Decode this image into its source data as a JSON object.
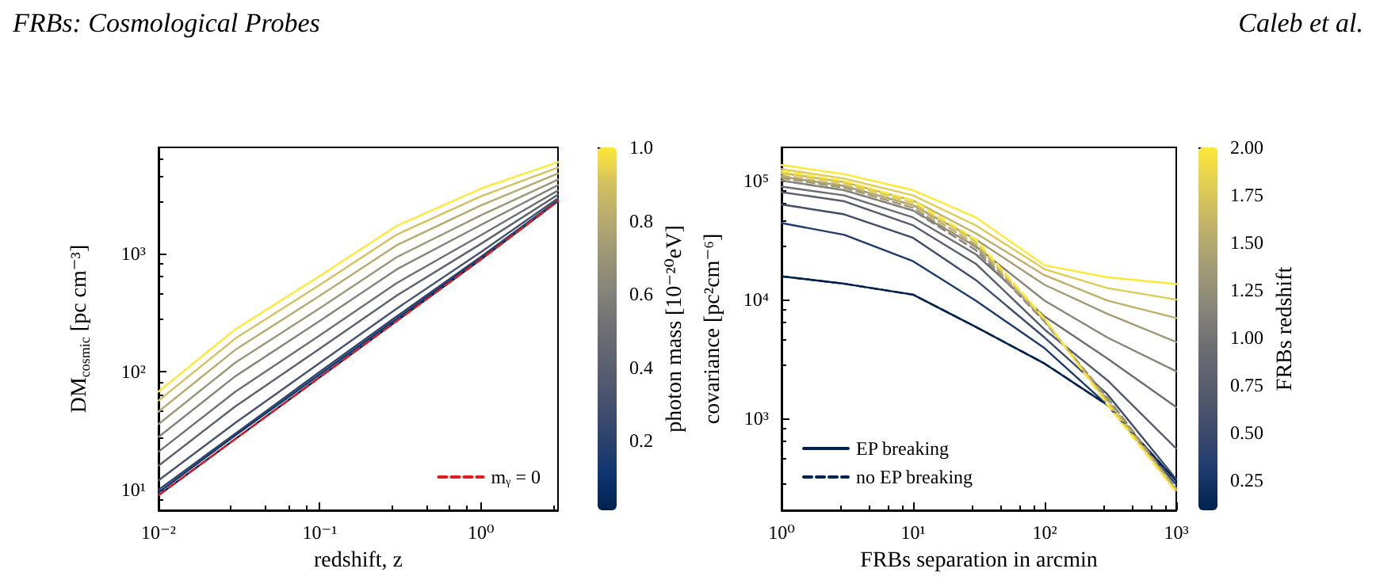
{
  "chart_data": [
    {
      "type": "line",
      "annotations": [
        "FRBs: Cosmological Probes"
      ],
      "xlabel": "redshift, z",
      "ylabel": "DM$_{cosmic}$ [pc cm⁻³]",
      "clabel": "photon mass [10⁻²⁰eV]",
      "clim": [
        0.01,
        1.0
      ],
      "cticks": [
        0.2,
        0.4,
        0.6,
        0.8,
        {
          "value": 1.0,
          "label": "1.0"
        }
      ],
      "log": "xy",
      "xlim": [
        0.01,
        3
      ],
      "ylim": [
        6.7,
        8000
      ],
      "xticks": [
        {
          "value": 0.01,
          "label": "10⁻²"
        },
        {
          "value": 0.1,
          "label": "10⁻¹"
        },
        {
          "value": 1,
          "label": "10⁰"
        }
      ],
      "yticks": [
        {
          "value": 10,
          "label": "10¹"
        },
        {
          "value": 100,
          "label": "10²"
        },
        {
          "value": 1000,
          "label": "10³"
        }
      ],
      "grid": false,
      "legend": "bottom right",
      "marker": "none",
      "x": [
        0.01,
        0.03,
        0.1,
        0.3,
        1,
        3
      ],
      "series": [
        {
          "color": "#00224e",
          "values": [
            9,
            27,
            90,
            270,
            900,
            2800
          ]
        },
        {
          "color": "#0f3570",
          "values": [
            9.5,
            29,
            95,
            282,
            923,
            2827
          ]
        },
        {
          "color": "#2d436b",
          "values": [
            10,
            30,
            100,
            295,
            946,
            2854
          ]
        },
        {
          "color": "#47526e",
          "values": [
            12,
            37,
            119,
            344,
            1037,
            2963
          ]
        },
        {
          "color": "#5c606f",
          "values": [
            16,
            51,
            157,
            444,
            1219,
            3181
          ]
        },
        {
          "color": "#6f6f74",
          "values": [
            21,
            68,
            204,
            566,
            1444,
            3450
          ]
        },
        {
          "color": "#838379",
          "values": [
            28,
            92,
            270,
            740,
            1763,
            3830
          ]
        },
        {
          "color": "#9b9677",
          "values": [
            36,
            120,
            346,
            939,
            2127,
            4266
          ]
        },
        {
          "color": "#b5aa6f",
          "values": [
            46,
            154,
            441,
            1185,
            2580,
            4806
          ]
        },
        {
          "color": "#d3c060",
          "values": [
            57,
            192,
            546,
            1458,
            3082,
            5405
          ]
        },
        {
          "color": "#fee838",
          "values": [
            68,
            230,
            650,
            1730,
            3580,
            6000
          ]
        },
        {
          "name": "mᵧ = 0",
          "color": "#e41a1c",
          "line_style": "dashed",
          "values": [
            9,
            27,
            90,
            270,
            900,
            2800
          ]
        }
      ]
    },
    {
      "type": "line",
      "annotations": [
        "Caleb et al."
      ],
      "xlabel": "FRBs separation in arcmin",
      "ylabel": "covariance [pc²cm⁻⁶]",
      "clabel": "FRBs redshift",
      "clim": [
        0.09,
        2.0
      ],
      "cticks": [
        {
          "value": 0.25,
          "label": "0.25"
        },
        {
          "value": 0.5,
          "label": "0.50"
        },
        {
          "value": 0.75,
          "label": "0.75"
        },
        {
          "value": 1.0,
          "label": "1.00"
        },
        {
          "value": 1.25,
          "label": "1.25"
        },
        {
          "value": 1.5,
          "label": "1.50"
        },
        {
          "value": 1.75,
          "label": "1.75"
        },
        {
          "value": 2.0,
          "label": "2.00"
        }
      ],
      "log": "xy",
      "xlim": [
        1,
        1000
      ],
      "ylim": [
        170,
        190000
      ],
      "xticks": [
        {
          "value": 1,
          "label": "10⁰"
        },
        {
          "value": 10,
          "label": "10¹"
        },
        {
          "value": 100,
          "label": "10²"
        },
        {
          "value": 1000,
          "label": "10³"
        }
      ],
      "yticks": [
        {
          "value": 1000,
          "label": "10³"
        },
        {
          "value": 10000,
          "label": "10⁴"
        },
        {
          "value": 100000,
          "label": "10⁵"
        }
      ],
      "grid": false,
      "legend": "bottom left",
      "marker": "none",
      "x": [
        1,
        3,
        10,
        30,
        100,
        300,
        1000
      ],
      "series": [
        {
          "name": "EP breaking",
          "color": "#00224e",
          "values": [
            15700,
            13600,
            11000,
            5900,
            2900,
            1300,
            300
          ]
        },
        {
          "color": "#1e3b6e",
          "values": [
            44000,
            35000,
            21000,
            9800,
            3900,
            1300,
            280
          ]
        },
        {
          "color": "#3e4c6b",
          "values": [
            63000,
            52000,
            33000,
            14600,
            4800,
            1600,
            310
          ]
        },
        {
          "color": "#575d6d",
          "values": [
            80000,
            67000,
            42000,
            20000,
            5600,
            2100,
            560
          ]
        },
        {
          "color": "#6c6d72",
          "values": [
            89000,
            75000,
            49000,
            24000,
            7200,
            3200,
            1250
          ]
        },
        {
          "color": "#878479",
          "values": [
            100000,
            83000,
            56000,
            28000,
            9800,
            4800,
            2500
          ]
        },
        {
          "color": "#a29a75",
          "values": [
            108000,
            90000,
            62000,
            32000,
            13300,
            7600,
            4400
          ]
        },
        {
          "color": "#bfaf6a",
          "values": [
            116000,
            97000,
            68000,
            36000,
            16000,
            9800,
            7000
          ]
        },
        {
          "color": "#decb55",
          "values": [
            125000,
            104000,
            75000,
            42000,
            18000,
            12500,
            10000
          ]
        },
        {
          "color": "#fee838",
          "values": [
            135000,
            113000,
            83000,
            49000,
            19400,
            15400,
            13500
          ]
        },
        {
          "name": "no EP breaking",
          "color": "#00224e",
          "line_style": "dashed",
          "values": [
            15700,
            13600,
            11000,
            5900,
            2900,
            1300,
            300
          ]
        },
        {
          "color": "#878479",
          "line_style": "dashed",
          "values": [
            100000,
            83000,
            56000,
            26000,
            6500,
            1500,
            260
          ]
        },
        {
          "color": "#a29a75",
          "line_style": "dashed",
          "values": [
            105000,
            87000,
            59000,
            27500,
            6600,
            1450,
            255
          ]
        },
        {
          "color": "#bfaf6a",
          "line_style": "dashed",
          "values": [
            110000,
            91000,
            62000,
            29000,
            6700,
            1400,
            250
          ]
        },
        {
          "color": "#decb55",
          "line_style": "dashed",
          "values": [
            115000,
            95000,
            65000,
            30500,
            6800,
            1350,
            245
          ]
        },
        {
          "color": "#fee838",
          "line_style": "dashed",
          "values": [
            120000,
            99000,
            68000,
            32000,
            6900,
            1300,
            240
          ]
        }
      ]
    }
  ]
}
